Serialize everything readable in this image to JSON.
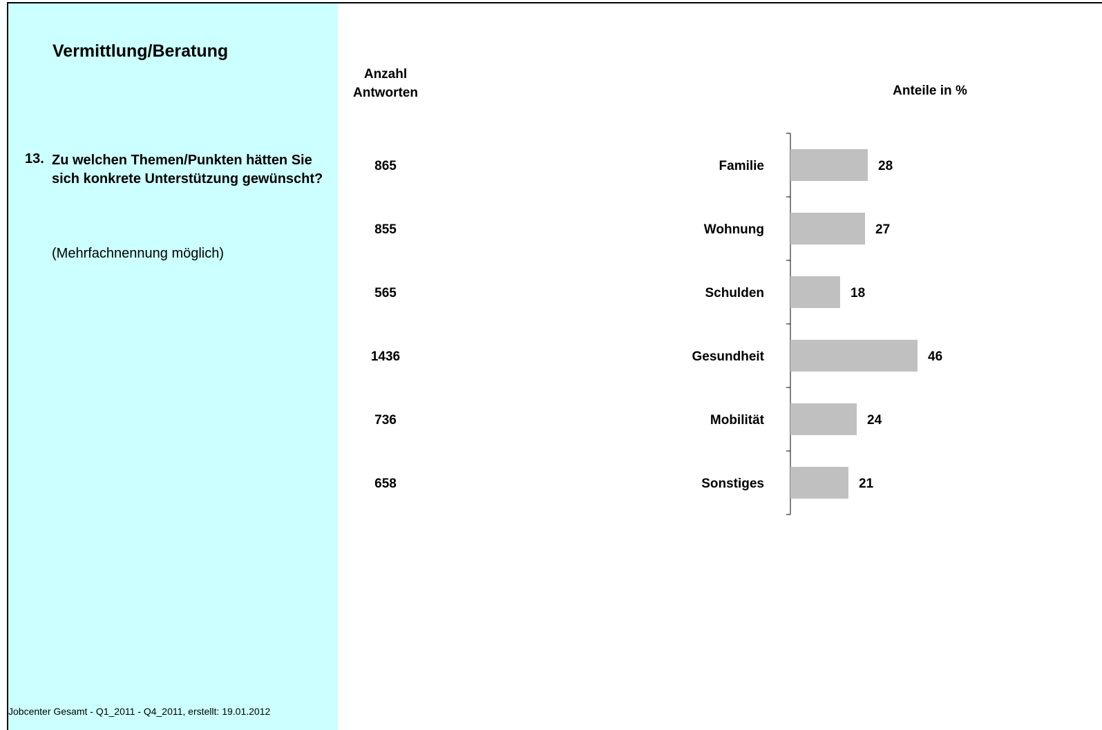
{
  "sidebar": {
    "title": "Vermittlung/Beratung",
    "question_number": "13.",
    "question_text": "Zu welchen Themen/Punkten hätten Sie sich konkrete Unterstützung gewünscht?",
    "question_note": "(Mehrfachnennung möglich)",
    "footer": "Jobcenter Gesamt - Q1_2011 - Q4_2011, erstellt: 19.01.2012",
    "background_color": "#ccffff"
  },
  "count_header": "Anzahl Antworten",
  "chart_data": {
    "type": "bar",
    "orientation": "horizontal",
    "ylabel": "Anteile in %",
    "categories": [
      "Familie",
      "Wohnung",
      "Schulden",
      "Gesundheit",
      "Mobilität",
      "Sonstiges"
    ],
    "values": [
      28,
      27,
      18,
      46,
      24,
      21
    ],
    "counts": [
      865,
      855,
      565,
      1436,
      736,
      658
    ],
    "xlim": [
      0,
      100
    ],
    "bar_color": "#c0c0c0",
    "grid": false,
    "legend": "none"
  }
}
